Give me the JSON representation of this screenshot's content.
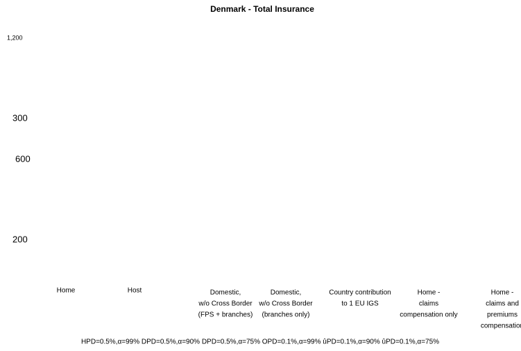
{
  "title": "Denmark - Total Insurance",
  "labels": [
    "1,200",
    "300",
    "600",
    "200"
  ],
  "categories": [
    [
      "Home"
    ],
    [
      "Host"
    ],
    [
      "Domestic,",
      "w/o Cross Border",
      "(FPS + branches)"
    ],
    [
      "Domestic,",
      "w/o Cross Border",
      "(branches only)"
    ],
    [
      "Country contribution",
      "to 1 EU IGS"
    ],
    [
      "Home -",
      "claims",
      "compensation only"
    ],
    [
      "Home -",
      "claims and",
      "premiums",
      "compensation"
    ]
  ],
  "footer": "HPD=0.5%,α=99% DPD=0.5%,α=90% DPD=0.5%,α=75% OPD=0.1%,α=99% ûPD=0.1%,α=90% ûPD=0.1%,α=75%"
}
